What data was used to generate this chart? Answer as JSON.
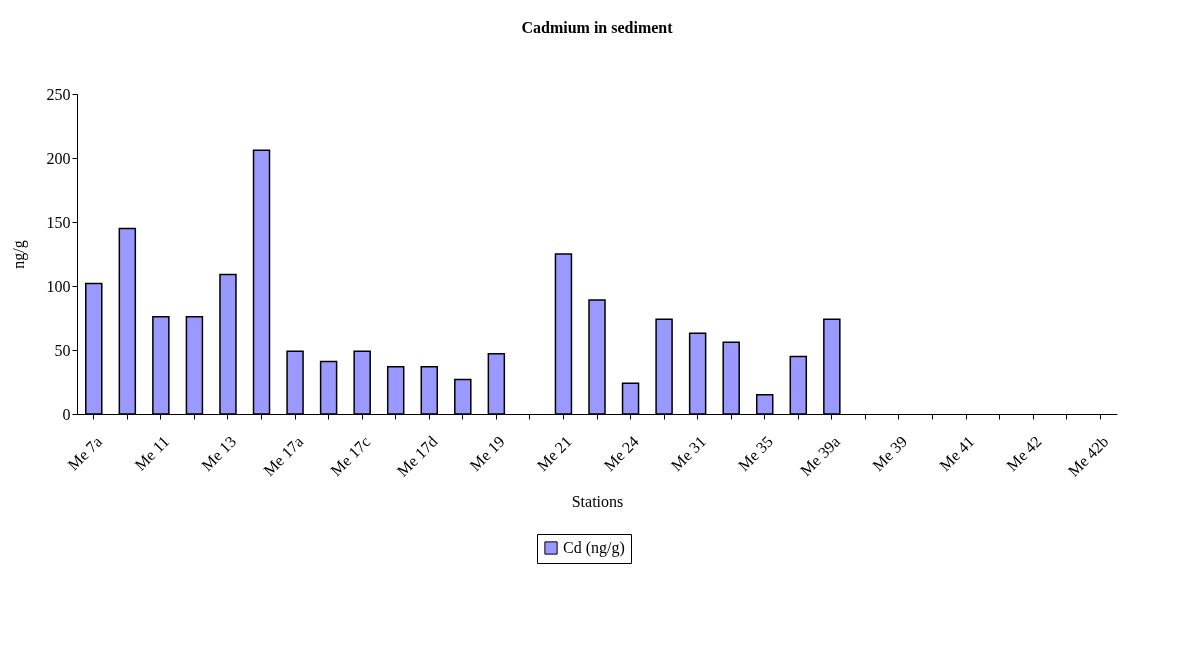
{
  "chart_data": {
    "type": "bar",
    "title": "Cadmium in sediment",
    "xlabel": "Stations",
    "ylabel": "ng/g",
    "categories": [
      "Me 7a",
      null,
      "Me 11",
      null,
      "Me 13",
      null,
      "Me 17a",
      null,
      "Me 17c",
      null,
      "Me 17d",
      null,
      "Me 19",
      null,
      "Me 21",
      null,
      "Me 24",
      null,
      "Me 31",
      null,
      "Me 35",
      null,
      "Me 39a",
      null,
      "Me 39",
      null,
      "Me 41",
      null,
      "Me 42",
      null,
      "Me 42b"
    ],
    "series": [
      {
        "name": "Cd (ng/g)",
        "color": "#9999ff",
        "values": [
          102,
          145,
          76,
          76,
          109,
          206,
          49,
          41,
          49,
          37,
          37,
          27,
          47,
          null,
          125,
          89,
          24,
          74,
          63,
          56,
          15,
          45,
          74,
          null,
          null,
          null,
          null,
          null,
          null,
          null,
          null
        ]
      }
    ],
    "ylim": [
      0,
      250
    ],
    "yticks": [
      0,
      50,
      100,
      150,
      200,
      250
    ],
    "grid": false,
    "legend": "bottom"
  }
}
